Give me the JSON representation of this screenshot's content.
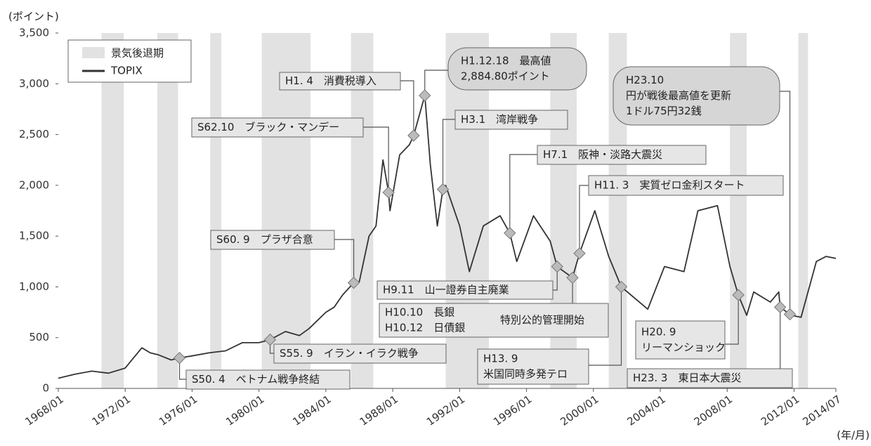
{
  "chart_data": {
    "type": "line",
    "y_unit": "(ポイント)",
    "x_unit": "(年/月)",
    "xlim": [
      "1968/01",
      "2014/07"
    ],
    "xticks": [
      "1968/01",
      "1972/01",
      "1976/01",
      "1980/01",
      "1984/01",
      "1988/01",
      "1992/01",
      "1996/01",
      "2000/01",
      "2004/01",
      "2008/01",
      "2012/01",
      "2014/07"
    ],
    "ylim": [
      0,
      3500
    ],
    "yticks": [
      0,
      500,
      {
        "value": 1000,
        "label": "1,000"
      },
      {
        "value": 1500,
        "label": "1,500"
      },
      {
        "value": 2000,
        "label": "2,000"
      },
      {
        "value": 2500,
        "label": "2,500"
      },
      {
        "value": 3000,
        "label": "3,000"
      },
      {
        "value": 3500,
        "label": "3,500"
      }
    ],
    "recession_label": "景気後退期",
    "recession_color": "#e2e2e2",
    "recessions": [
      [
        "1970/08",
        "1971/12"
      ],
      [
        "1973/12",
        "1975/03"
      ],
      [
        "1977/02",
        "1977/10"
      ],
      [
        "1980/03",
        "1983/02"
      ],
      [
        "1985/07",
        "1986/11"
      ],
      [
        "1991/03",
        "1993/10"
      ],
      [
        "1997/06",
        "1999/01"
      ],
      [
        "2000/12",
        "2002/01"
      ],
      [
        "2008/03",
        "2009/03"
      ],
      [
        "2012/04",
        "2012/11"
      ]
    ],
    "series": [
      {
        "name": "TOPIX",
        "color": "#333333",
        "x": [
          "1968/01",
          "1969/01",
          "1970/01",
          "1971/01",
          "1972/01",
          "1972/07",
          "1973/01",
          "1973/07",
          "1974/01",
          "1974/10",
          "1975/04",
          "1976/01",
          "1977/01",
          "1978/01",
          "1979/01",
          "1980/01",
          "1980/09",
          "1981/08",
          "1982/06",
          "1983/01",
          "1984/01",
          "1984/07",
          "1985/01",
          "1985/09",
          "1986/01",
          "1986/08",
          "1987/01",
          "1987/06",
          "1987/10",
          "1987/11",
          "1988/06",
          "1989/01",
          "1989/04",
          "1989/12",
          "1990/04",
          "1990/09",
          "1991/01",
          "1991/03",
          "1992/01",
          "1992/08",
          "1993/06",
          "1994/06",
          "1995/01",
          "1995/06",
          "1996/06",
          "1997/06",
          "1997/11",
          "1998/10",
          "1999/03",
          "2000/02",
          "2000/12",
          "2001/09",
          "2003/04",
          "2004/04",
          "2005/06",
          "2006/04",
          "2007/06",
          "2008/03",
          "2008/09",
          "2009/03",
          "2009/08",
          "2010/08",
          "2011/02",
          "2011/03",
          "2011/10",
          "2011/11",
          "2012/06",
          "2013/05",
          "2013/12",
          "2014/07"
        ],
        "values": [
          100,
          140,
          170,
          150,
          200,
          300,
          400,
          350,
          330,
          280,
          300,
          320,
          350,
          370,
          450,
          450,
          480,
          560,
          520,
          590,
          750,
          800,
          920,
          1040,
          1050,
          1500,
          1600,
          2250,
          1930,
          1750,
          2300,
          2400,
          2490,
          2884.8,
          2200,
          1600,
          1960,
          2000,
          1600,
          1150,
          1600,
          1700,
          1530,
          1250,
          1700,
          1450,
          1200,
          1090,
          1330,
          1750,
          1300,
          1000,
          780,
          1200,
          1150,
          1750,
          1800,
          1200,
          920,
          720,
          950,
          850,
          950,
          800,
          730,
          720,
          700,
          1250,
          1300,
          1280
        ]
      }
    ],
    "annotations": [
      {
        "date": "1975/04",
        "value": 300,
        "lines": [
          "S50. 4　ベトナム戦争終結"
        ]
      },
      {
        "date": "1980/09",
        "value": 480,
        "lines": [
          "S55. 9　イラン・イラク戦争"
        ]
      },
      {
        "date": "1985/09",
        "value": 1040,
        "lines": [
          "S60. 9　プラザ合意"
        ]
      },
      {
        "date": "1987/10",
        "value": 1930,
        "lines": [
          "S62.10　ブラック・マンデー"
        ]
      },
      {
        "date": "1989/04",
        "value": 2490,
        "lines": [
          "H1. 4　消費税導入"
        ]
      },
      {
        "date": "1989/12",
        "value": 2884.8,
        "lines": [
          "H1.12.18　最高値",
          "2,884.80ポイント"
        ]
      },
      {
        "date": "1991/01",
        "value": 1960,
        "lines": [
          "H3.1　湾岸戦争"
        ]
      },
      {
        "date": "1995/01",
        "value": 1530,
        "lines": [
          "H7.1　阪神・淡路大震災"
        ]
      },
      {
        "date": "1997/11",
        "value": 1200,
        "lines": [
          "H9.11　山一證券自主廃業"
        ]
      },
      {
        "date": "1998/10",
        "value": 1090,
        "lines": [
          "H10.10　長銀",
          "H10.12　日債銀"
        ],
        "side": "特別公的管理開始"
      },
      {
        "date": "1999/03",
        "value": 1330,
        "lines": [
          "H11. 3　実質ゼロ金利スタート"
        ]
      },
      {
        "date": "2001/09",
        "value": 1000,
        "lines": [
          "H13. 9",
          "米国同時多発テロ"
        ]
      },
      {
        "date": "2008/09",
        "value": 920,
        "lines": [
          "H20. 9",
          "リーマンショック"
        ]
      },
      {
        "date": "2011/03",
        "value": 800,
        "lines": [
          "H23. 3　東日本大震災"
        ]
      },
      {
        "date": "2011/10",
        "value": 730,
        "lines": [
          "H23.10",
          "円が戦後最高値を更新",
          "1ドル75円32銭"
        ]
      }
    ]
  }
}
